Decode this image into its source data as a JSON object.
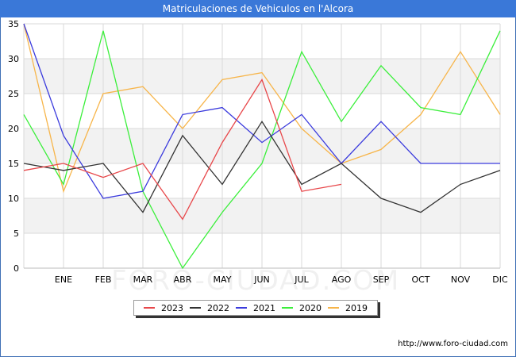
{
  "page": {
    "title": "Matriculaciones de Vehiculos en l'Alcora",
    "footer_url": "http://www.foro-ciudad.com",
    "watermark": "FORO-CIUDAD.COM"
  },
  "colors": {
    "title_bar": "#3a78d8",
    "plot_bg_band": "#f2f2f2",
    "grid": "#d9d9d9"
  },
  "chart_data": {
    "type": "line",
    "title": "Matriculaciones de Vehiculos en l'Alcora",
    "categories": [
      "",
      "ENE",
      "FEB",
      "MAR",
      "ABR",
      "MAY",
      "JUN",
      "JUL",
      "AGO",
      "SEP",
      "OCT",
      "NOV",
      "DIC"
    ],
    "ylim": [
      0,
      35
    ],
    "yticks": [
      0,
      5,
      10,
      15,
      20,
      25,
      30,
      35
    ],
    "grid": true,
    "legend_position": "bottom",
    "series": [
      {
        "name": "2023",
        "color": "#e8474a",
        "values": [
          14,
          15,
          13,
          15,
          7,
          18,
          27,
          11,
          12,
          null,
          null,
          null,
          null
        ]
      },
      {
        "name": "2022",
        "color": "#333333",
        "values": [
          15,
          14,
          15,
          8,
          19,
          12,
          21,
          12,
          15,
          10,
          8,
          12,
          14
        ]
      },
      {
        "name": "2021",
        "color": "#3b3bdd",
        "values": [
          35,
          19,
          10,
          11,
          22,
          23,
          18,
          22,
          15,
          21,
          15,
          15,
          15
        ]
      },
      {
        "name": "2020",
        "color": "#3bef3b",
        "values": [
          22,
          12,
          34,
          11,
          0,
          8,
          15,
          31,
          21,
          29,
          23,
          22,
          34
        ]
      },
      {
        "name": "2019",
        "color": "#f7b54a",
        "values": [
          35,
          11,
          25,
          26,
          20,
          27,
          28,
          20,
          15,
          17,
          22,
          31,
          22
        ]
      }
    ]
  }
}
